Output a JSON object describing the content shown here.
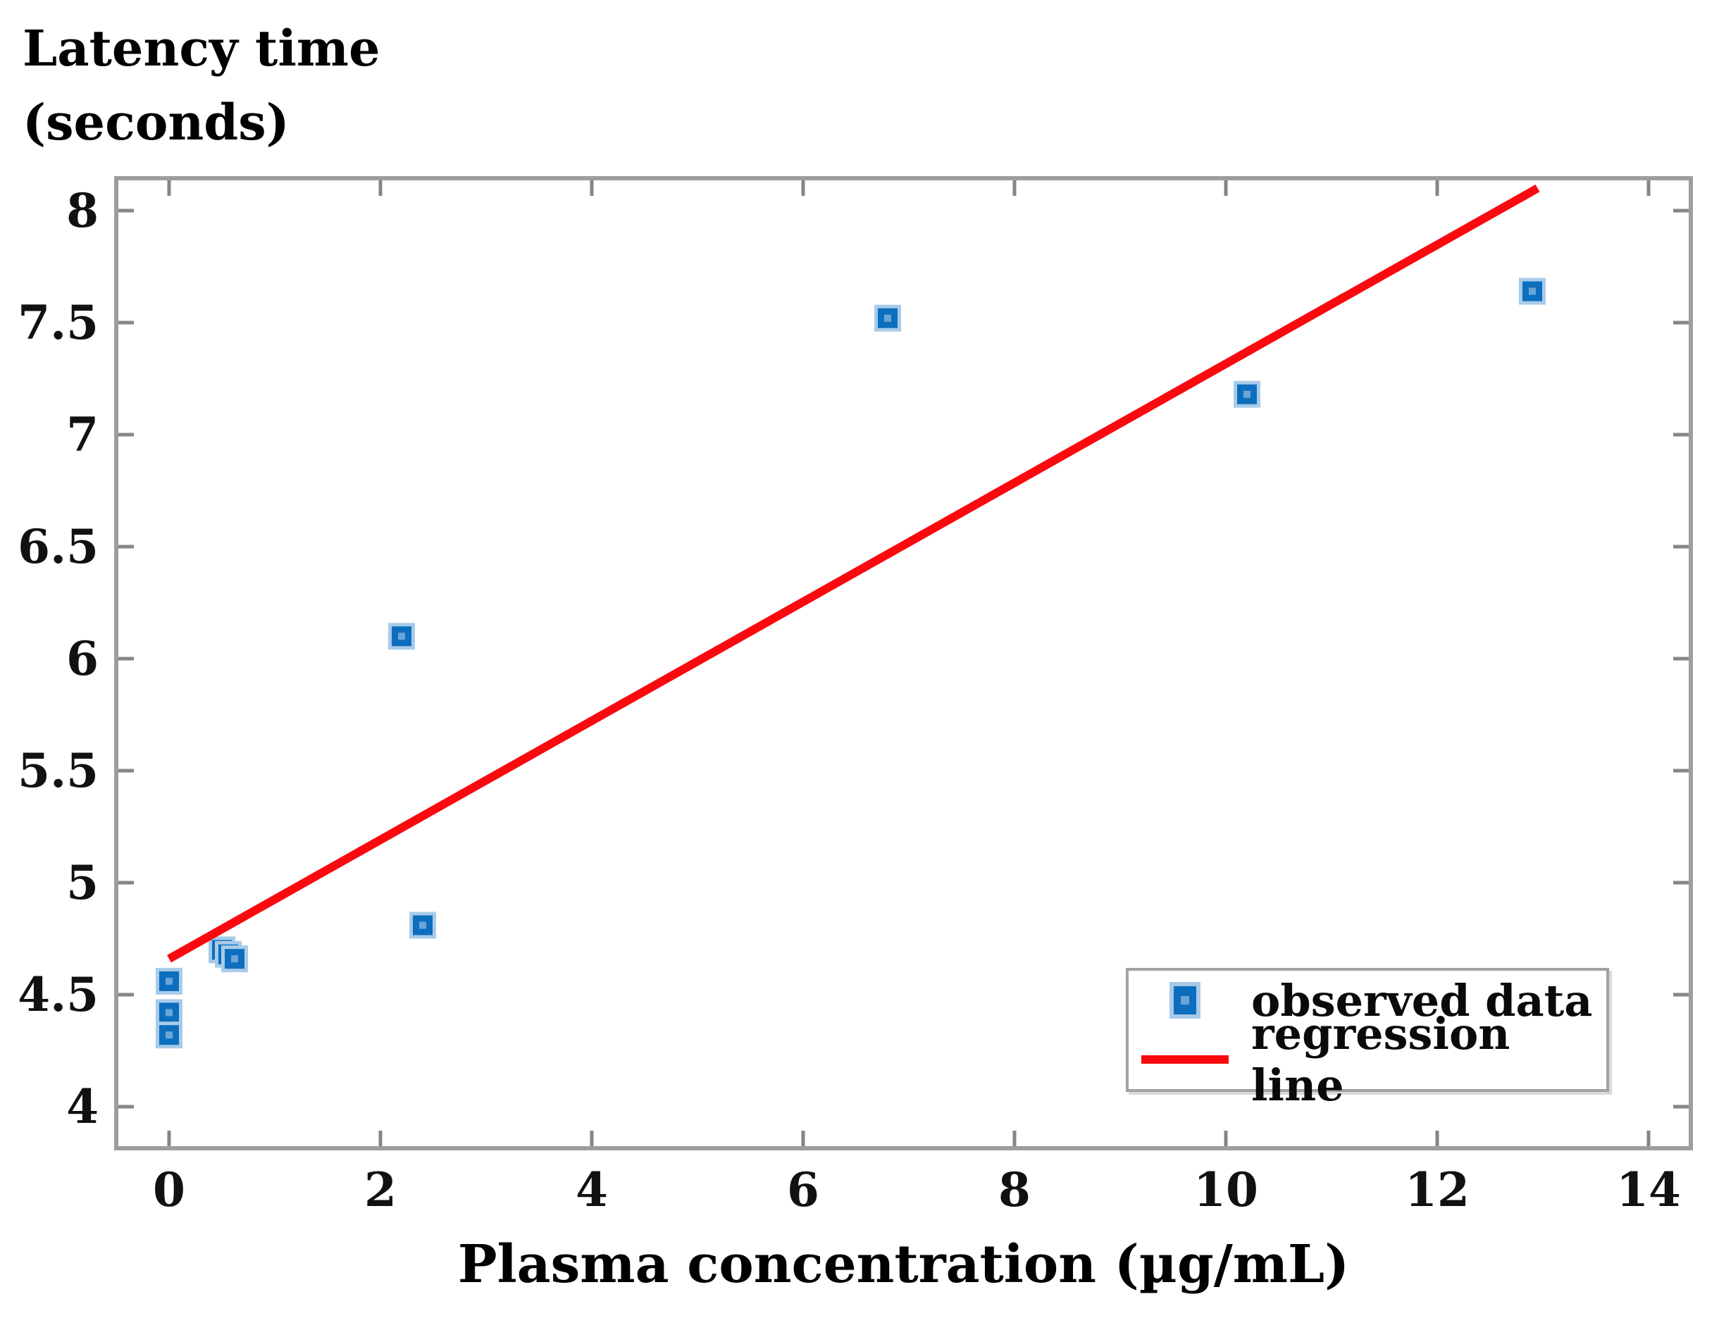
{
  "figure": {
    "y_axis_title": "Latency time\n(seconds)",
    "x_axis_title": "Plasma concentration (µg/mL)"
  },
  "legend": {
    "observed_label": "observed data",
    "regression_label": "regression line"
  },
  "colors": {
    "marker_fill": "#0d6ebd",
    "marker_halo": "#a8cbe9",
    "marker_inner": "#6aa5d8",
    "regression_red": "#fa0a0f",
    "spine_gray": "#9d9d9d",
    "tick_gray": "#858585",
    "label_black": "#111111"
  },
  "chart_data": {
    "type": "scatter",
    "title": "",
    "xlabel": "Plasma concentration (µg/mL)",
    "ylabel": "Latency time (seconds)",
    "xlim": [
      -0.5,
      14.4
    ],
    "ylim": [
      3.81,
      8.15
    ],
    "x_ticks": [
      0,
      2,
      4,
      6,
      8,
      10,
      12,
      14
    ],
    "y_ticks": [
      4,
      4.5,
      5,
      5.5,
      6,
      6.5,
      7,
      7.5,
      8
    ],
    "grid": false,
    "legend_position": "lower right",
    "series": [
      {
        "name": "observed data",
        "type": "scatter",
        "marker": "square",
        "points": [
          [
            0,
            4.56
          ],
          [
            0,
            4.42
          ],
          [
            0,
            4.32
          ],
          [
            0.5,
            4.7
          ],
          [
            0.56,
            4.68
          ],
          [
            0.62,
            4.66
          ],
          [
            2.2,
            6.1
          ],
          [
            2.4,
            4.81
          ],
          [
            6.8,
            7.52
          ],
          [
            10.2,
            7.18
          ],
          [
            12.9,
            7.64
          ]
        ]
      },
      {
        "name": "regression line",
        "type": "line",
        "points": [
          [
            0,
            4.66
          ],
          [
            12.95,
            8.1
          ]
        ]
      }
    ]
  }
}
